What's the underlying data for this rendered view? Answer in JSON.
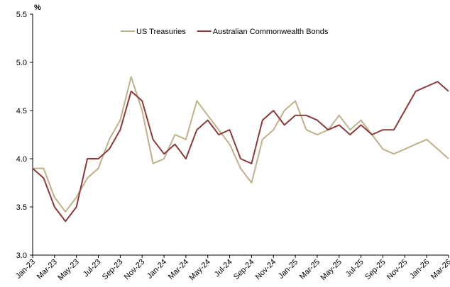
{
  "chart_data": {
    "type": "line",
    "y_label": "%",
    "categories": [
      "Jan-23",
      null,
      "Mar-23",
      null,
      "May-23",
      null,
      "Jul-23",
      null,
      "Sep-23",
      null,
      "Nov-23",
      null,
      "Jan-24",
      null,
      "Mar-24",
      null,
      "May-24",
      null,
      "Jul-24",
      null,
      "Sep-24",
      null,
      "Nov-24",
      null,
      "Jan-25",
      null,
      "Mar-25",
      null,
      "May-25",
      null,
      "Jul-25",
      null,
      "Sep-25",
      null,
      "Nov-25",
      null,
      "Jan-26",
      null,
      "Mar-26"
    ],
    "series": [
      {
        "name": "US Treasuries",
        "color": "#c0b08a",
        "values": [
          3.9,
          3.9,
          3.6,
          3.45,
          3.6,
          3.8,
          3.9,
          4.2,
          4.4,
          4.85,
          4.5,
          3.95,
          4.0,
          4.25,
          4.2,
          4.6,
          4.45,
          4.3,
          4.15,
          3.9,
          3.75,
          4.2,
          4.3,
          4.5,
          4.6,
          4.3,
          4.25,
          4.3,
          4.45,
          4.3,
          4.4,
          4.25,
          4.1,
          4.05,
          4.1,
          4.15,
          4.2,
          4.1,
          4.0
        ]
      },
      {
        "name": "Australian Commonwealth Bonds",
        "color": "#8b3a3a",
        "values": [
          3.9,
          3.8,
          3.5,
          3.35,
          3.5,
          4.0,
          4.0,
          4.1,
          4.3,
          4.7,
          4.6,
          4.2,
          4.05,
          4.15,
          4.0,
          4.3,
          4.4,
          4.25,
          4.3,
          4.0,
          3.95,
          4.4,
          4.5,
          4.35,
          4.45,
          4.45,
          4.4,
          4.3,
          4.35,
          4.25,
          4.35,
          4.25,
          4.3,
          4.3,
          4.5,
          4.7,
          4.75,
          4.8,
          4.7
        ]
      }
    ],
    "ylim": [
      3.0,
      5.5
    ],
    "yticks": [
      {
        "value": 3.0,
        "label": "3.0"
      },
      {
        "value": 3.5,
        "label": "3.5"
      },
      {
        "value": 4.0,
        "label": "4.0"
      },
      {
        "value": 4.5,
        "label": "4.5"
      },
      {
        "value": 5.0,
        "label": "5.0"
      },
      {
        "value": 5.5,
        "label": "5.5"
      }
    ],
    "legend": "top"
  }
}
